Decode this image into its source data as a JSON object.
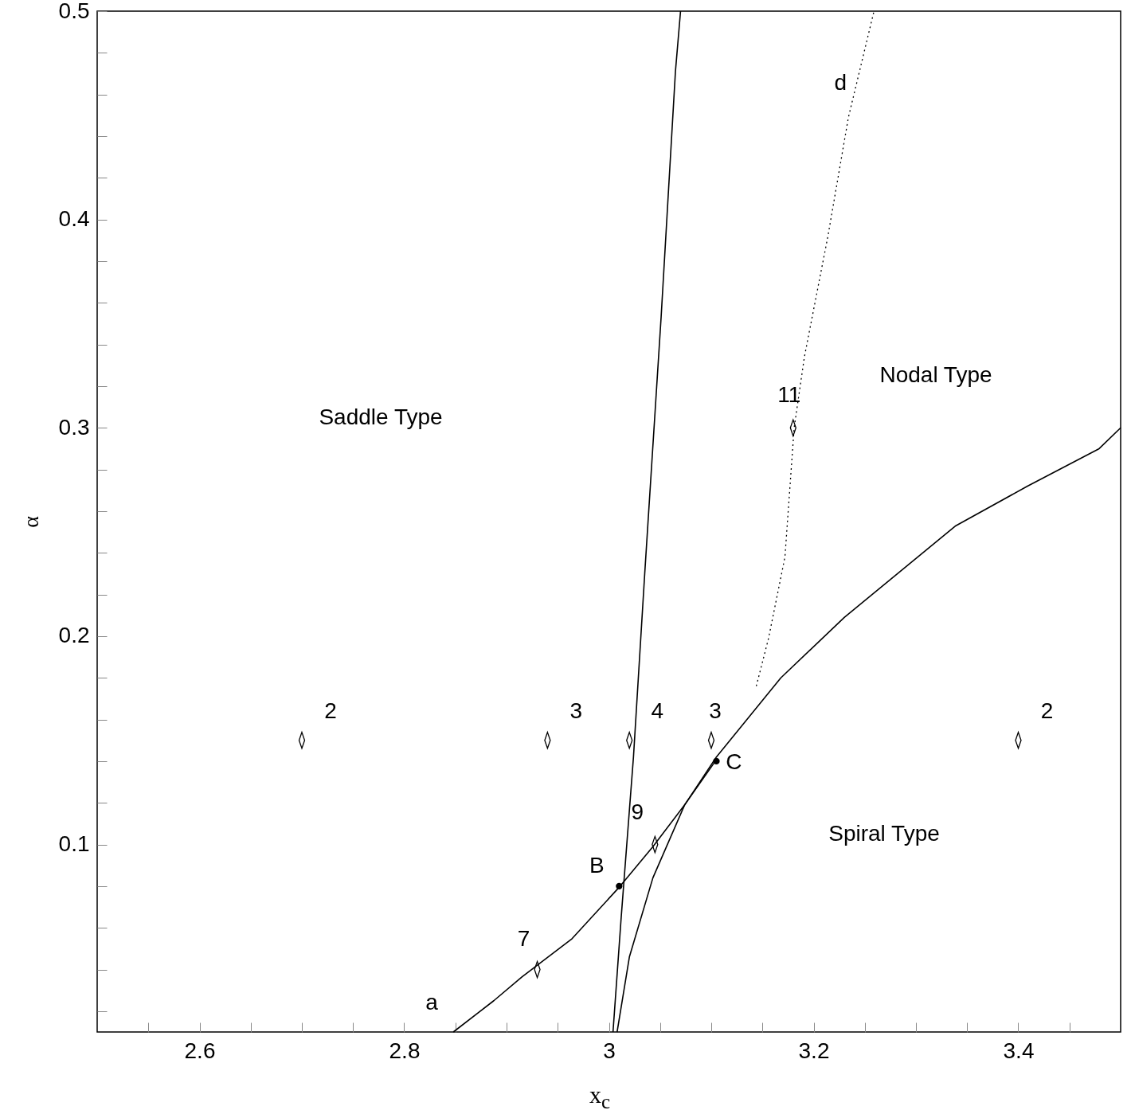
{
  "chart_data": {
    "type": "line",
    "xlabel": "x$_{c}$",
    "ylabel": "α",
    "xlim": [
      2.5,
      3.5
    ],
    "ylim": [
      0.01,
      0.5
    ],
    "xticks": [
      {
        "value": 2.55,
        "label": null
      },
      2.6,
      {
        "value": 2.65,
        "label": null
      },
      {
        "value": 2.7,
        "label": null
      },
      {
        "value": 2.75,
        "label": null
      },
      2.8,
      {
        "value": 2.85,
        "label": null
      },
      {
        "value": 2.9,
        "label": null
      },
      {
        "value": 2.95,
        "label": null
      },
      3,
      {
        "value": 3.05,
        "label": null
      },
      {
        "value": 3.1,
        "label": null
      },
      {
        "value": 3.15,
        "label": null
      },
      3.2,
      {
        "value": 3.25,
        "label": null
      },
      {
        "value": 3.3,
        "label": null
      },
      {
        "value": 3.35,
        "label": null
      },
      3.4,
      {
        "value": 3.45,
        "label": null
      }
    ],
    "yticks": [
      {
        "value": 0.02,
        "label": null
      },
      {
        "value": 0.04,
        "label": null
      },
      {
        "value": 0.06,
        "label": null
      },
      {
        "value": 0.08,
        "label": null
      },
      0.1,
      {
        "value": 0.12,
        "label": null
      },
      {
        "value": 0.14,
        "label": null
      },
      {
        "value": 0.16,
        "label": null
      },
      {
        "value": 0.18,
        "label": null
      },
      0.2,
      {
        "value": 0.22,
        "label": null
      },
      {
        "value": 0.24,
        "label": null
      },
      {
        "value": 0.26,
        "label": null
      },
      {
        "value": 0.28,
        "label": null
      },
      0.3,
      {
        "value": 0.32,
        "label": null
      },
      {
        "value": 0.34,
        "label": null
      },
      {
        "value": 0.36,
        "label": null
      },
      {
        "value": 0.38,
        "label": null
      },
      0.4,
      {
        "value": 0.42,
        "label": null
      },
      {
        "value": 0.44,
        "label": null
      },
      {
        "value": 0.46,
        "label": null
      },
      {
        "value": 0.48,
        "label": null
      },
      0.5
    ],
    "grid": false,
    "series": [
      {
        "color": "#000000",
        "line_style": "solid",
        "x": [
          3.004,
          3.012,
          3.024,
          3.035,
          3.051,
          3.065,
          3.07
        ],
        "values": [
          0.01,
          0.065,
          0.142,
          0.23,
          0.353,
          0.471,
          0.5
        ]
      },
      {
        "color": "#000000",
        "line_style": "solid",
        "x": [
          3.008,
          3.02,
          3.043,
          3.074,
          3.105,
          3.168,
          3.23,
          3.339,
          3.409,
          3.479,
          3.5
        ],
        "values": [
          0.01,
          0.046,
          0.084,
          0.119,
          0.142,
          0.18,
          0.209,
          0.253,
          0.272,
          0.29,
          0.3
        ]
      },
      {
        "color": "#000000",
        "line_style": "dotted",
        "x": [
          3.144,
          3.156,
          3.172,
          3.181,
          3.191,
          3.214,
          3.234,
          3.259
        ],
        "values": [
          0.176,
          0.199,
          0.238,
          0.3,
          0.334,
          0.392,
          0.449,
          0.5
        ]
      },
      {
        "color": "#000000",
        "line_style": "solid",
        "x": [
          2.848,
          2.8875,
          2.915,
          2.964,
          3.011,
          3.043,
          3.074,
          3.104
        ],
        "values": [
          0.01,
          0.025,
          0.0364,
          0.0548,
          0.08,
          0.099,
          0.119,
          0.14
        ]
      },
      {
        "type": "scatter",
        "marker": "circle",
        "color": "#000000",
        "x": [
          3.01,
          3.105
        ],
        "values": [
          0.08,
          0.14
        ]
      },
      {
        "type": "scatter",
        "marker": "diamond",
        "color": "#000000",
        "x": [
          2.7,
          2.94,
          3.02,
          3.1,
          3.4,
          3.18,
          3.045,
          2.93
        ],
        "values": [
          0.15,
          0.15,
          0.15,
          0.15,
          0.15,
          0.3,
          0.1,
          0.04
        ]
      }
    ],
    "annotations": [
      "Saddle Type",
      "Nodal Type",
      "Spiral Type",
      {
        "text": "a",
        "x": 2.8875,
        "y": 0.025
      },
      {
        "text": "B",
        "x": 3.01,
        "y": 0.08
      },
      {
        "text": "C",
        "x": 3.105,
        "y": 0.14
      },
      {
        "text": "d",
        "x": 3.234,
        "y": 0.449
      },
      {
        "text": "2",
        "x": 2.7,
        "y": 0.15
      },
      {
        "text": "3",
        "x": 2.94,
        "y": 0.15
      },
      {
        "text": "4",
        "x": 3.02,
        "y": 0.15
      },
      {
        "text": "3",
        "x": 3.1,
        "y": 0.15
      },
      {
        "text": "2",
        "x": 3.4,
        "y": 0.15
      },
      {
        "text": "11",
        "x": 3.18,
        "y": 0.3
      },
      {
        "text": "9",
        "x": 3.045,
        "y": 0.1
      },
      {
        "text": "7",
        "x": 2.93,
        "y": 0.04
      }
    ]
  }
}
